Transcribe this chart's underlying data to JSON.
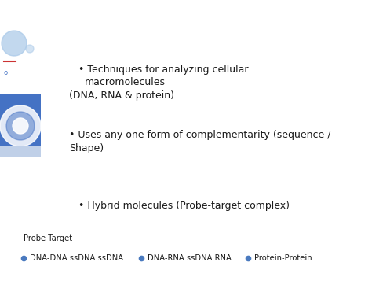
{
  "bg_color": "#ffffff",
  "bullet1_line1": "• Techniques for analyzing cellular",
  "bullet1_line2": "    macromolecules",
  "bullet1_line3": "(DNA, RNA & protein)",
  "bullet2_line1": "• Uses any one form of complementarity (sequence /",
  "bullet2_line2": "Shape)",
  "bullet3": "• Hybrid molecules (Probe-target complex)",
  "probe_target_label": "Probe Target",
  "legend_dot_color": "#4a7abf",
  "legend_text1": "DNA-DNA ssDNA ssDNA",
  "legend_text2": "DNA-RNA ssDNA RNA",
  "legend_text3": "Protein-Protein",
  "text_color": "#1a1a1a",
  "font_size_main": 9.0,
  "font_size_small": 7.2,
  "font_family": "DejaVu Sans",
  "left_circle_color": "#a8c8e8",
  "left_square_color1": "#4472c4",
  "left_square_color2": "#c0d8f0"
}
